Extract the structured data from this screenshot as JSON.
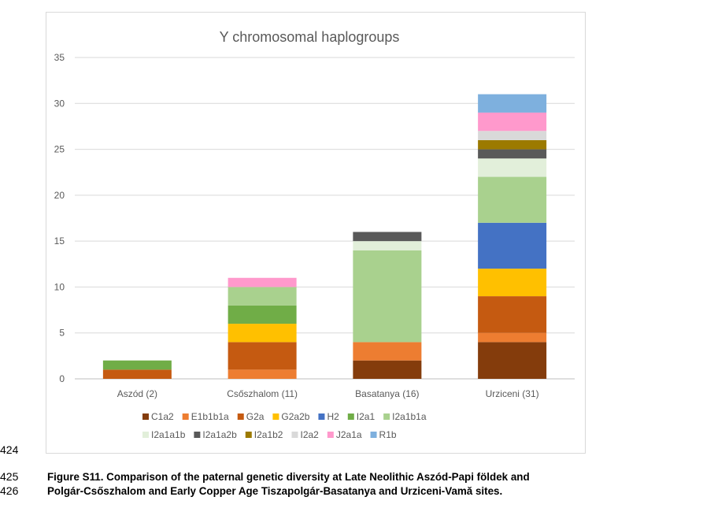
{
  "chart_data": {
    "type": "bar",
    "stacked": true,
    "title": "Y chromosomal haplogroups",
    "xlabel": "",
    "ylabel": "",
    "ylim": [
      0,
      35
    ],
    "yticks": [
      0,
      5,
      10,
      15,
      20,
      25,
      30,
      35
    ],
    "grid": true,
    "legend_position": "bottom",
    "categories": [
      "Aszód (2)",
      "Csőszhalom (11)",
      "Basatanya (16)",
      "Urziceni (31)"
    ],
    "series": [
      {
        "name": "C1a2",
        "color": "#843c0c",
        "values": [
          0,
          0,
          2,
          4
        ]
      },
      {
        "name": "E1b1b1a",
        "color": "#ed7d31",
        "values": [
          0,
          1,
          2,
          1
        ]
      },
      {
        "name": "G2a",
        "color": "#c55a11",
        "values": [
          1,
          3,
          0,
          4
        ]
      },
      {
        "name": "G2a2b",
        "color": "#ffc000",
        "values": [
          0,
          2,
          0,
          3
        ]
      },
      {
        "name": "H2",
        "color": "#4472c4",
        "values": [
          0,
          0,
          0,
          5
        ]
      },
      {
        "name": "I2a1",
        "color": "#70ad47",
        "values": [
          1,
          2,
          0,
          0
        ]
      },
      {
        "name": "I2a1b1a",
        "color": "#a9d18e",
        "values": [
          0,
          2,
          10,
          5
        ]
      },
      {
        "name": "I2a1a1b",
        "color": "#e2efda",
        "values": [
          0,
          0,
          1,
          2
        ]
      },
      {
        "name": "I2a1a2b",
        "color": "#595959",
        "values": [
          0,
          0,
          1,
          1
        ]
      },
      {
        "name": "I2a1b2",
        "color": "#9c7a00",
        "values": [
          0,
          0,
          0,
          1
        ]
      },
      {
        "name": "I2a2",
        "color": "#d9d9d9",
        "values": [
          0,
          0,
          0,
          1
        ]
      },
      {
        "name": "J2a1a",
        "color": "#ff99cc",
        "values": [
          0,
          1,
          0,
          2
        ]
      },
      {
        "name": "R1b",
        "color": "#7eb0de",
        "values": [
          0,
          0,
          0,
          2
        ]
      }
    ]
  },
  "line_numbers": [
    "424",
    "425",
    "426"
  ],
  "caption": {
    "line1": "Figure S11. Comparison of the paternal genetic diversity at Late Neolithic Aszód-Papi földek and",
    "line2": "Polgár-Csőszhalom and Early Copper Age Tiszapolgár-Basatanya and Urziceni-Vamă sites."
  }
}
